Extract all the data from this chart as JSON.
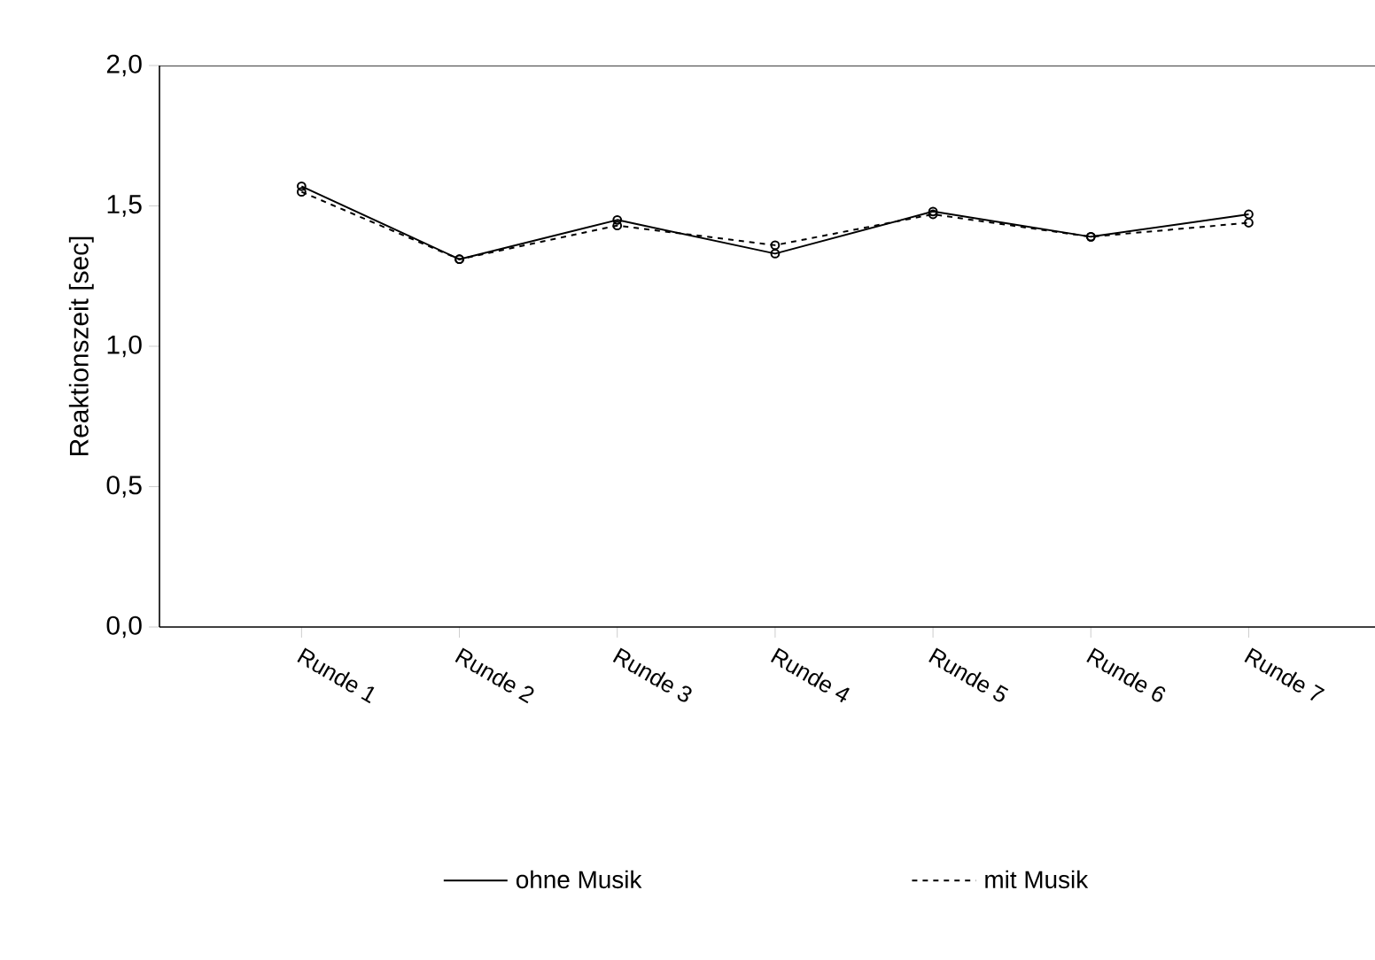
{
  "chart_data": {
    "type": "line",
    "ylabel": "Reaktionszeit [sec]",
    "categories": [
      "Runde 1",
      "Runde 2",
      "Runde 3",
      "Runde 4",
      "Runde 5",
      "Runde 6",
      "Runde 7"
    ],
    "series": [
      {
        "name": "ohne Musik",
        "color": "#000000",
        "line_style": "solid",
        "values": [
          1.57,
          1.31,
          1.45,
          1.33,
          1.48,
          1.39,
          1.47
        ]
      },
      {
        "name": "mit Musik",
        "color": "#000000",
        "line_style": "dashed",
        "values": [
          1.55,
          1.31,
          1.43,
          1.36,
          1.47,
          1.39,
          1.44
        ]
      }
    ],
    "ylim": [
      0,
      2.0
    ],
    "yticks": [
      {
        "value": 0,
        "label": "0,0"
      },
      {
        "value": 0.5,
        "label": "0,5"
      },
      {
        "value": 1.0,
        "label": "1,0"
      },
      {
        "value": 1.5,
        "label": "1,5"
      },
      {
        "value": 2.0,
        "label": "2,0"
      }
    ],
    "marker": "circle",
    "legend": "bottom",
    "grid": false
  }
}
